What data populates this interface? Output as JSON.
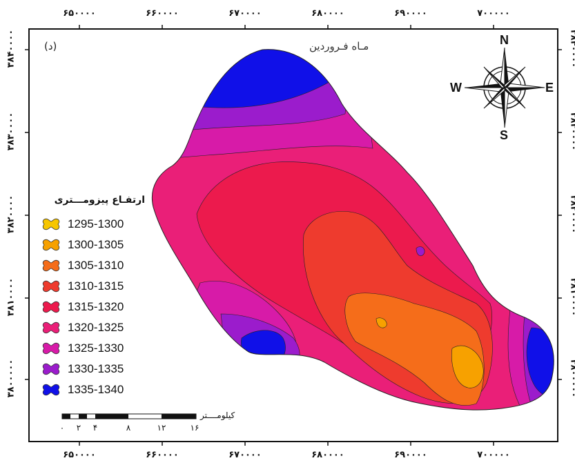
{
  "map": {
    "panel_label": "(د)",
    "title": "مـاه فـروردین",
    "x_ticks": [
      "۶۵۰۰۰۰",
      "۶۶۰۰۰۰",
      "۶۷۰۰۰۰",
      "۶۸۰۰۰۰",
      "۶۹۰۰۰۰",
      "۷۰۰۰۰۰"
    ],
    "y_ticks_left": [
      "۳۸۴۰۰۰۰",
      "۳۸۳۰۰۰۰",
      "۳۸۲۰۰۰۰",
      "۳۸۱۰۰۰۰",
      "۳۸۰۰۰۰۰"
    ],
    "y_ticks_right": [
      "۳۸۴۰۰۰۰",
      "۳۸۳۰۰۰۰",
      "۳۸۲۰۰۰۰",
      "۳۸۱۰۰۰۰",
      "۳۸۰۰۰۰۰"
    ]
  },
  "compass": {
    "n": "N",
    "s": "S",
    "e": "E",
    "w": "W"
  },
  "legend": {
    "title": "ارتفـاع پیزومـــتری",
    "items": [
      {
        "label": "1295-1300",
        "color": "#f7c600"
      },
      {
        "label": "1300-1305",
        "color": "#f7a100"
      },
      {
        "label": "1305-1310",
        "color": "#f56d1a"
      },
      {
        "label": "1310-1315",
        "color": "#ee3b2e"
      },
      {
        "label": "1315-1320",
        "color": "#ec1a4d"
      },
      {
        "label": "1320-1325",
        "color": "#ea1f78"
      },
      {
        "label": "1325-1330",
        "color": "#d71ba8"
      },
      {
        "label": "1330-1335",
        "color": "#9b1ccc"
      },
      {
        "label": "1335-1340",
        "color": "#1010e8"
      }
    ]
  },
  "scale_bar": {
    "unit": "کیلومــــتر",
    "ticks": [
      "۰",
      "۲",
      "۴",
      "۸",
      "۱۲",
      "۱۶"
    ]
  }
}
